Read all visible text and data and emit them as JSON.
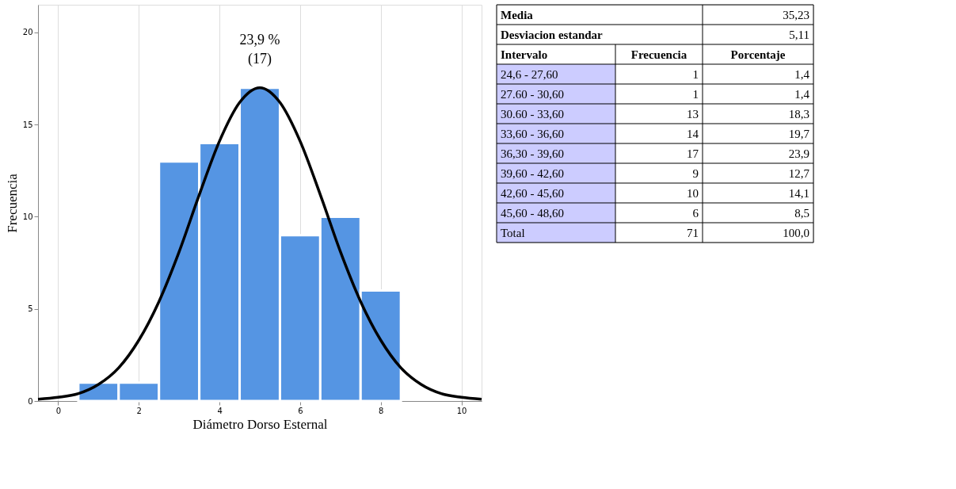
{
  "chart_data": {
    "type": "histogram",
    "xlabel": "Diámetro Dorso Esternal",
    "ylabel": "Frecuencia",
    "bins": [
      0.5,
      1.5,
      2.5,
      3.5,
      4.5,
      5.5,
      6.5,
      7.5,
      8.5
    ],
    "values": [
      1,
      1,
      13,
      14,
      17,
      9,
      10,
      6
    ],
    "color": "#5595e3",
    "series": [
      {
        "type": "line",
        "color": "#000000",
        "x": [
          -0.5,
          0,
          0.5,
          1,
          1.5,
          2,
          2.5,
          3,
          3.5,
          4,
          4.5,
          5,
          5.5,
          6,
          6.5,
          7,
          7.5,
          8,
          8.5,
          9,
          9.5,
          10,
          10.5
        ],
        "values": [
          0.1,
          0.2,
          0.4,
          0.9,
          1.8,
          3.3,
          5.4,
          8.1,
          11.2,
          14.1,
          16.2,
          17,
          16.2,
          14.1,
          11.2,
          8.1,
          5.4,
          3.3,
          1.8,
          0.9,
          0.4,
          0.2,
          0.1
        ]
      }
    ],
    "xlim": [
      -0.5,
      10.5
    ],
    "xticks": [
      0,
      2,
      4,
      6,
      8,
      10
    ],
    "ylim": [
      0,
      21.5
    ],
    "yticks": [
      0,
      5,
      10,
      15,
      20
    ],
    "grid": "x",
    "line_style": "solid",
    "annotations": [
      {
        "text": "23,9 %",
        "x": 5,
        "y": 17
      },
      {
        "text": "(17)",
        "x": 5,
        "y": 17
      },
      "Media",
      "35,23",
      "Desviacion estandar",
      "5,11",
      "Intervalo",
      "Frecuencia",
      "Porcentaje",
      "24,6 - 27,60",
      "1",
      "1,4",
      "27.60 - 30,60",
      "1",
      "1,4",
      "30.60 - 33,60",
      "13",
      "18,3",
      "33,60 - 36,60",
      "14",
      "19,7",
      "36,30 - 39,60",
      "17",
      "23,9",
      "39,60 - 42,60",
      "9",
      "12,7",
      "42,60 -  45,60",
      "10",
      "14,1",
      "45,60 -  48,60",
      "6",
      "8,5",
      "Total",
      "71",
      "100,0"
    ]
  }
}
